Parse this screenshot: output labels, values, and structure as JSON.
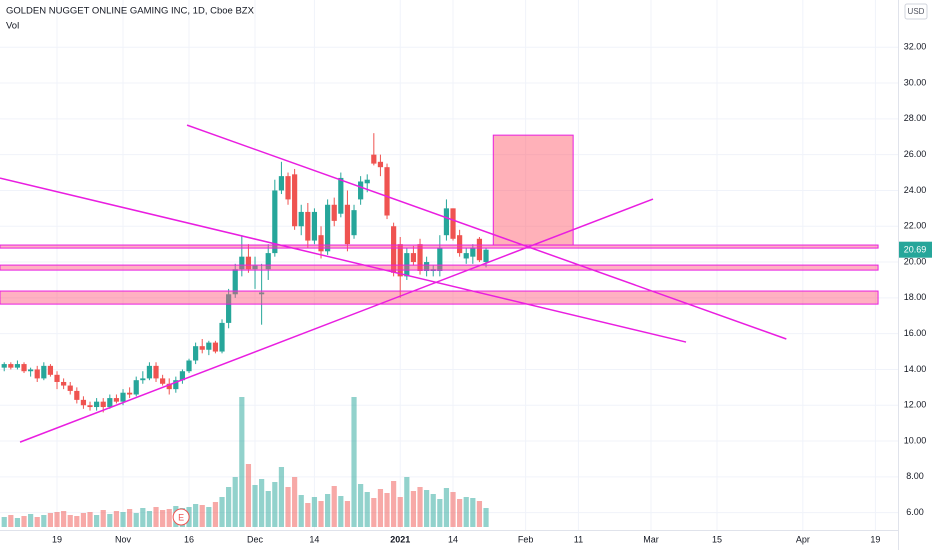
{
  "chart_data": {
    "type": "candlestick",
    "title": "GOLDEN NUGGET ONLINE GAMING INC, 1D, Cboe BZX",
    "volume_label": "Vol",
    "currency": "USD",
    "last_price": 20.69,
    "up_color": "#26a69a",
    "down_color": "#ef5350",
    "xlim": [
      -8.64,
      127.42
    ],
    "ylim": [
      5.03,
      34.64
    ],
    "xticks": [
      {
        "value": 0,
        "label": "19"
      },
      {
        "value": 10,
        "label": "Nov"
      },
      {
        "value": 20,
        "label": "16"
      },
      {
        "value": 30,
        "label": "Dec"
      },
      {
        "value": 39,
        "label": "14"
      },
      {
        "value": 52,
        "label": "2021"
      },
      {
        "value": 60,
        "label": "14"
      },
      {
        "value": 71,
        "label": "Feb"
      },
      {
        "value": 79,
        "label": "11"
      },
      {
        "value": 90,
        "label": "Mar"
      },
      {
        "value": 100,
        "label": "15"
      },
      {
        "value": 113,
        "label": "Apr"
      },
      {
        "value": 124,
        "label": "19"
      }
    ],
    "yticks": [
      {
        "value": 6,
        "label": "6.00"
      },
      {
        "value": 8,
        "label": "8.00"
      },
      {
        "value": 10,
        "label": "10.00"
      },
      {
        "value": 12,
        "label": "12.00"
      },
      {
        "value": 14,
        "label": "14.00"
      },
      {
        "value": 16,
        "label": "16.00"
      },
      {
        "value": 18,
        "label": "18.00"
      },
      {
        "value": 20,
        "label": "20.00"
      },
      {
        "value": 22,
        "label": "22.00"
      },
      {
        "value": 24,
        "label": "24.00"
      },
      {
        "value": 26,
        "label": "26.00"
      },
      {
        "value": 28,
        "label": "28.00"
      },
      {
        "value": 30,
        "label": "30.00"
      },
      {
        "value": 32,
        "label": "32.00"
      }
    ],
    "grid": true,
    "x": [
      -8,
      -7,
      -6,
      -5,
      -4,
      -3,
      -2,
      -1,
      0,
      1,
      2,
      3,
      4,
      5,
      6,
      7,
      8,
      9,
      10,
      11,
      12,
      13,
      14,
      15,
      16,
      17,
      18,
      19,
      20,
      21,
      22,
      23,
      24,
      25,
      26,
      27,
      28,
      29,
      30,
      31,
      32,
      33,
      34,
      35,
      36,
      37,
      38,
      39,
      40,
      41,
      42,
      43,
      44,
      45,
      46,
      47,
      48,
      49,
      50,
      51,
      52,
      53,
      54,
      55,
      56,
      57,
      58,
      59,
      60,
      61,
      62,
      63,
      64,
      65
    ],
    "ohlc": [
      [
        14.1,
        14.4,
        13.9,
        14.3
      ],
      [
        14.3,
        14.4,
        14.0,
        14.1
      ],
      [
        14.1,
        14.5,
        14.0,
        14.3
      ],
      [
        14.3,
        14.4,
        13.8,
        13.9
      ],
      [
        13.9,
        14.1,
        13.6,
        14.0
      ],
      [
        14.0,
        14.2,
        13.3,
        13.5
      ],
      [
        13.5,
        14.4,
        13.4,
        14.2
      ],
      [
        14.2,
        14.3,
        13.6,
        13.7
      ],
      [
        13.7,
        13.9,
        12.9,
        13.3
      ],
      [
        13.3,
        13.5,
        12.9,
        13.1
      ],
      [
        13.1,
        13.3,
        12.6,
        12.8
      ],
      [
        12.8,
        13.0,
        12.1,
        12.3
      ],
      [
        12.3,
        12.5,
        11.8,
        12.0
      ],
      [
        12.0,
        12.2,
        11.7,
        11.9
      ],
      [
        11.9,
        12.4,
        11.7,
        12.2
      ],
      [
        12.2,
        12.4,
        11.6,
        11.9
      ],
      [
        11.9,
        12.6,
        11.8,
        12.4
      ],
      [
        12.4,
        12.6,
        12.1,
        12.2
      ],
      [
        12.2,
        12.9,
        12.0,
        12.7
      ],
      [
        12.7,
        13.0,
        12.4,
        12.6
      ],
      [
        12.6,
        13.6,
        12.5,
        13.4
      ],
      [
        13.4,
        13.9,
        13.2,
        13.5
      ],
      [
        13.5,
        14.4,
        13.4,
        14.2
      ],
      [
        14.2,
        14.4,
        13.3,
        13.5
      ],
      [
        13.5,
        13.7,
        13.1,
        13.2
      ],
      [
        13.2,
        13.5,
        12.6,
        12.9
      ],
      [
        12.9,
        13.6,
        12.7,
        13.4
      ],
      [
        13.4,
        14.0,
        13.2,
        13.9
      ],
      [
        13.9,
        14.6,
        13.8,
        14.5
      ],
      [
        14.5,
        15.5,
        14.3,
        15.3
      ],
      [
        15.3,
        15.7,
        14.9,
        15.1
      ],
      [
        15.1,
        15.6,
        14.8,
        15.5
      ],
      [
        15.5,
        15.6,
        14.9,
        15.0
      ],
      [
        15.0,
        16.8,
        14.9,
        16.6
      ],
      [
        16.6,
        18.5,
        16.3,
        18.2
      ],
      [
        18.2,
        19.9,
        18.0,
        19.6
      ],
      [
        19.6,
        21.5,
        19.2,
        20.3
      ],
      [
        20.3,
        21.0,
        19.4,
        19.6
      ],
      [
        19.6,
        20.3,
        18.5,
        19.8
      ],
      [
        18.2,
        19.9,
        16.5,
        18.3
      ],
      [
        19.6,
        21.0,
        19.0,
        20.5
      ],
      [
        20.5,
        24.6,
        20.3,
        24.0
      ],
      [
        24.0,
        25.6,
        23.8,
        24.8
      ],
      [
        24.8,
        25.0,
        23.2,
        23.5
      ],
      [
        24.9,
        25.2,
        21.8,
        22.0
      ],
      [
        22.0,
        23.2,
        21.5,
        22.8
      ],
      [
        22.8,
        23.3,
        20.8,
        21.2
      ],
      [
        21.2,
        23.0,
        21.0,
        22.8
      ],
      [
        21.5,
        22.0,
        20.2,
        20.6
      ],
      [
        20.6,
        23.5,
        20.4,
        23.2
      ],
      [
        23.2,
        23.6,
        22.0,
        22.3
      ],
      [
        22.7,
        25.0,
        22.5,
        24.7
      ],
      [
        23.2,
        24.0,
        20.6,
        21.0
      ],
      [
        21.5,
        23.2,
        21.3,
        22.9
      ],
      [
        23.5,
        24.8,
        23.2,
        24.5
      ],
      [
        24.4,
        24.9,
        23.9,
        24.6
      ],
      [
        26.0,
        27.2,
        25.4,
        25.5
      ],
      [
        25.6,
        26.0,
        24.8,
        25.3
      ],
      [
        25.3,
        25.5,
        22.4,
        22.6
      ],
      [
        22.0,
        22.2,
        19.2,
        19.4
      ],
      [
        21.0,
        21.4,
        18.0,
        19.2
      ],
      [
        19.2,
        20.8,
        19.0,
        20.5
      ],
      [
        20.5,
        20.9,
        19.8,
        20.0
      ],
      [
        21.0,
        21.3,
        19.3,
        19.5
      ],
      [
        19.5,
        20.3,
        19.2,
        20.0
      ],
      [
        19.5,
        19.8,
        19.2,
        19.6
      ],
      [
        19.5,
        21.5,
        19.2,
        20.8
      ],
      [
        21.5,
        23.5,
        21.2,
        23.0
      ],
      [
        23.0,
        23.0,
        21.2,
        21.3
      ],
      [
        21.5,
        21.8,
        20.3,
        20.5
      ],
      [
        20.2,
        20.8,
        19.9,
        20.5
      ],
      [
        20.3,
        21.0,
        19.9,
        20.8
      ],
      [
        21.3,
        21.4,
        20.0,
        20.1
      ],
      [
        20.0,
        20.8,
        19.7,
        20.69
      ]
    ],
    "volume": [
      1.0,
      1.2,
      0.9,
      1.1,
      1.3,
      1.0,
      1.2,
      1.4,
      1.5,
      1.6,
      1.2,
      1.1,
      1.4,
      1.5,
      1.2,
      1.7,
      1.3,
      1.6,
      1.5,
      1.8,
      1.4,
      1.9,
      1.6,
      2.0,
      1.7,
      1.8,
      2.1,
      1.9,
      2.0,
      2.3,
      2.2,
      2.0,
      2.5,
      3.0,
      4.0,
      5.0,
      13.0,
      6.3,
      4.2,
      4.8,
      3.6,
      4.5,
      6.0,
      4.0,
      5.0,
      3.2,
      2.4,
      3.0,
      2.6,
      3.3,
      4.1,
      3.1,
      2.6,
      13.0,
      4.3,
      3.5,
      2.9,
      3.8,
      3.4,
      4.6,
      3.0,
      5.0,
      3.6,
      4.0,
      3.7,
      3.3,
      2.8,
      3.9,
      3.5,
      2.8,
      3.0,
      2.9,
      2.6,
      1.9
    ],
    "earnings": {
      "x": 18.8,
      "label": "E"
    },
    "drawing_color": "#e91ee0",
    "trend_lines": [
      {
        "x": [
          19.7,
          110.5
        ],
        "y": [
          27.65,
          15.7
        ]
      },
      {
        "x": [
          -8.64,
          95.3
        ],
        "y": [
          24.69,
          15.53
        ]
      },
      {
        "x": [
          -5.6,
          90.3
        ],
        "y": [
          9.94,
          23.52
        ]
      }
    ],
    "zones": [
      {
        "x": [
          -8.64,
          124.4
        ],
        "y": [
          20.78,
          20.95
        ]
      },
      {
        "x": [
          -8.64,
          124.4
        ],
        "y": [
          19.55,
          19.83
        ]
      },
      {
        "x": [
          -8.64,
          124.4
        ],
        "y": [
          17.65,
          18.38
        ]
      }
    ],
    "box": {
      "x": [
        66.1,
        78.2
      ],
      "y": [
        20.95,
        27.09
      ]
    }
  }
}
